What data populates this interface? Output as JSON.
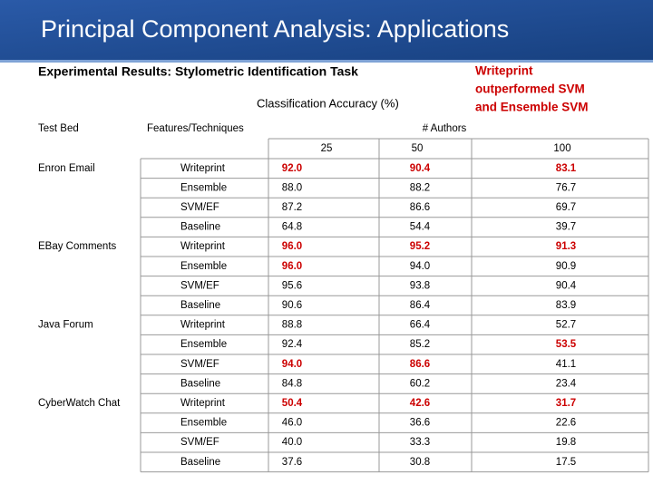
{
  "header": {
    "title": "Principal Component Analysis: Applications"
  },
  "subtitle": "Experimental Results: Stylometric Identification Task",
  "callout": [
    "Writeprint",
    "outperformed SVM",
    "and Ensemble SVM"
  ],
  "table": {
    "caption": "Classification Accuracy (%)",
    "headers": [
      "Test Bed",
      "Features/Techniques",
      "# Authors"
    ],
    "authors": [
      "25",
      "50",
      "100"
    ],
    "highlight_color": "#cc0000",
    "groups": [
      {
        "test_bed": "Enron Email",
        "rows": [
          {
            "technique": "Writeprint",
            "values": [
              "92.0",
              "90.4",
              "83.1"
            ],
            "highlighted": [
              0,
              1,
              2
            ]
          },
          {
            "technique": "Ensemble",
            "values": [
              "88.0",
              "88.2",
              "76.7"
            ],
            "highlighted": []
          },
          {
            "technique": "SVM/EF",
            "values": [
              "87.2",
              "86.6",
              "69.7"
            ],
            "highlighted": []
          },
          {
            "technique": "Baseline",
            "values": [
              "64.8",
              "54.4",
              "39.7"
            ],
            "highlighted": []
          }
        ]
      },
      {
        "test_bed": "EBay Comments",
        "rows": [
          {
            "technique": "Writeprint",
            "values": [
              "96.0",
              "95.2",
              "91.3"
            ],
            "highlighted": [
              0,
              1,
              2
            ]
          },
          {
            "technique": "Ensemble",
            "values": [
              "96.0",
              "94.0",
              "90.9"
            ],
            "highlighted": [
              0
            ]
          },
          {
            "technique": "SVM/EF",
            "values": [
              "95.6",
              "93.8",
              "90.4"
            ],
            "highlighted": []
          },
          {
            "technique": "Baseline",
            "values": [
              "90.6",
              "86.4",
              "83.9"
            ],
            "highlighted": []
          }
        ]
      },
      {
        "test_bed": "Java Forum",
        "rows": [
          {
            "technique": "Writeprint",
            "values": [
              "88.8",
              "66.4",
              "52.7"
            ],
            "highlighted": []
          },
          {
            "technique": "Ensemble",
            "values": [
              "92.4",
              "85.2",
              "53.5"
            ],
            "highlighted": [
              2
            ]
          },
          {
            "technique": "SVM/EF",
            "values": [
              "94.0",
              "86.6",
              "41.1"
            ],
            "highlighted": [
              0,
              1
            ]
          },
          {
            "technique": "Baseline",
            "values": [
              "84.8",
              "60.2",
              "23.4"
            ],
            "highlighted": []
          }
        ]
      },
      {
        "test_bed": "CyberWatch Chat",
        "rows": [
          {
            "technique": "Writeprint",
            "values": [
              "50.4",
              "42.6",
              "31.7"
            ],
            "highlighted": [
              0,
              1,
              2
            ]
          },
          {
            "technique": "Ensemble",
            "values": [
              "46.0",
              "36.6",
              "22.6"
            ],
            "highlighted": []
          },
          {
            "technique": "SVM/EF",
            "values": [
              "40.0",
              "33.3",
              "19.8"
            ],
            "highlighted": []
          },
          {
            "technique": "Baseline",
            "values": [
              "37.6",
              "30.8",
              "17.5"
            ],
            "highlighted": []
          }
        ]
      }
    ]
  }
}
